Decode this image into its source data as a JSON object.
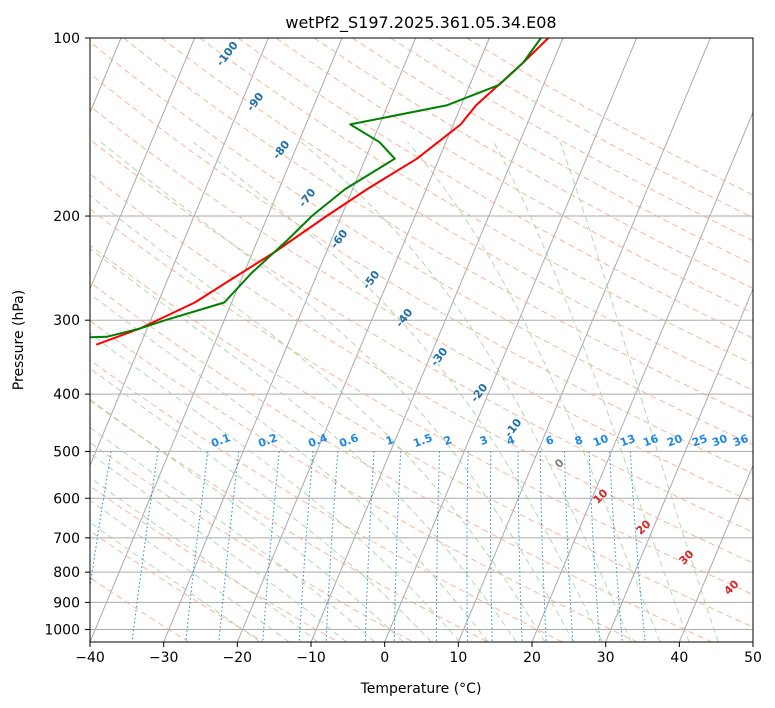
{
  "chart_data": {
    "type": "line",
    "title": "wetPf2_S197.2025.361.05.34.E08",
    "xlabel": "Temperature (°C)",
    "ylabel": "Pressure (hPa)",
    "xlim": [
      -40,
      50
    ],
    "ylim": [
      1050,
      100
    ],
    "y_scale": "log",
    "grid": true,
    "x_ticks": [
      -40,
      -30,
      -20,
      -10,
      0,
      10,
      20,
      30,
      40,
      50
    ],
    "x_tick_labels": [
      "−40",
      "−30",
      "−20",
      "−10",
      "0",
      "10",
      "20",
      "30",
      "40",
      "50"
    ],
    "y_ticks": [
      100,
      200,
      300,
      400,
      500,
      600,
      700,
      800,
      900,
      1000
    ],
    "y_tick_labels": [
      "100",
      "200",
      "300",
      "400",
      "500",
      "600",
      "700",
      "800",
      "900",
      "1000"
    ],
    "series": [
      {
        "name": "",
        "color": "#ff0000",
        "points": [
          [
            -12,
            100
          ],
          [
            -14,
            110
          ],
          [
            -18,
            130
          ],
          [
            -19,
            140
          ],
          [
            -23,
            160
          ],
          [
            -28,
            180
          ],
          [
            -32,
            200
          ],
          [
            -37,
            230
          ],
          [
            -42,
            260
          ],
          [
            -45,
            280
          ],
          [
            -51,
            310
          ],
          [
            -56,
            330
          ]
        ]
      },
      {
        "name": "",
        "color": "#008000",
        "points": [
          [
            -13,
            100
          ],
          [
            -14,
            110
          ],
          [
            -16,
            120
          ],
          [
            -22,
            130
          ],
          [
            -34,
            140
          ],
          [
            -29,
            150
          ],
          [
            -26,
            160
          ],
          [
            -31,
            180
          ],
          [
            -34,
            200
          ],
          [
            -36,
            220
          ],
          [
            -39,
            250
          ],
          [
            -41,
            280
          ],
          [
            -48,
            300
          ],
          [
            -51,
            310
          ],
          [
            -55,
            320
          ],
          [
            -74,
            325
          ],
          [
            -80,
            330
          ]
        ]
      }
    ],
    "dry_adiabat_labels": [
      "-100",
      "-90",
      "-80",
      "-70",
      "-60",
      "-50",
      "-40",
      "-30",
      "-20",
      "-10"
    ],
    "moist_adiabat_labels": [
      "0",
      "10",
      "20",
      "30",
      "40"
    ],
    "mixing_ratio_labels": [
      "0.1",
      "0.2",
      "0.4",
      "0.6",
      "1",
      "1.5",
      "2",
      "3",
      "4",
      "6",
      "8",
      "10",
      "13",
      "16",
      "20",
      "25",
      "30",
      "36"
    ],
    "colors": {
      "isotherm": "#aaaaaa",
      "isobar": "#aaaaaa",
      "dry_adiabat": "#f4a582",
      "moist_adiabat": "#9ecf9e",
      "mixing_ratio": "#1e88e5",
      "dry_label": "#1f6fa8",
      "moist_label": "#d62728",
      "mixing_label": "#1e88e5",
      "zero_label": "#808080"
    }
  }
}
